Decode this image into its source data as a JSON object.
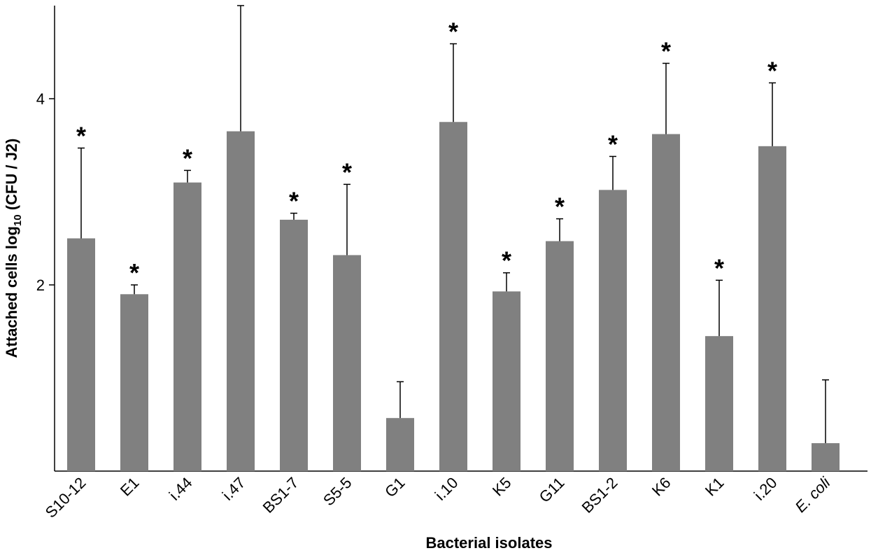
{
  "chart_data": {
    "type": "bar",
    "title": "",
    "xlabel": "Bacterial isolates",
    "ylabel_main": "Attached cells  log",
    "ylabel_sub": "10",
    "ylabel_tail": " (CFU / J2)",
    "ylim": [
      0,
      5.0
    ],
    "yticks": [
      2,
      4
    ],
    "ytick_labels": [
      "2",
      "4"
    ],
    "grid": false,
    "bar_color": "#808080",
    "categories": [
      "S10-12",
      "E1",
      "i.44",
      "i.47",
      "BS1-7",
      "S5-5",
      "G1",
      "i.10",
      "K5",
      "G11",
      "BS1-2",
      "K6",
      "K1",
      "i.20",
      "E. coli"
    ],
    "italic_categories": [
      "E. coli"
    ],
    "values": [
      2.5,
      1.9,
      3.1,
      3.65,
      2.7,
      2.32,
      0.57,
      3.75,
      1.93,
      2.47,
      3.02,
      3.62,
      1.45,
      3.49,
      0.3
    ],
    "errors": [
      0.97,
      0.1,
      0.13,
      1.35,
      0.07,
      0.76,
      0.39,
      0.84,
      0.2,
      0.24,
      0.36,
      0.76,
      0.6,
      0.68,
      0.68
    ],
    "significance_marker": "*",
    "significant": [
      true,
      true,
      true,
      true,
      true,
      true,
      false,
      true,
      true,
      true,
      true,
      true,
      true,
      true,
      false
    ]
  }
}
